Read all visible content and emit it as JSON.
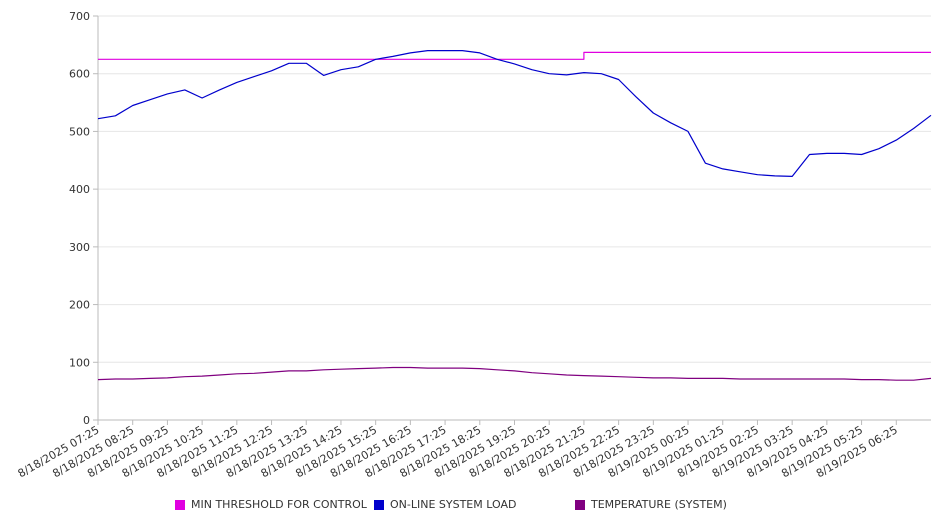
{
  "chart_data": {
    "type": "line",
    "title": "",
    "xlabel": "",
    "ylabel": "",
    "ylim": [
      0,
      700
    ],
    "yticks": [
      0,
      100,
      200,
      300,
      400,
      500,
      600,
      700
    ],
    "grid": "horizontal",
    "legend_position": "bottom",
    "x_tick_labels": [
      "8/18/2025 07:25",
      "8/18/2025 08:25",
      "8/18/2025 09:25",
      "8/18/2025 10:25",
      "8/18/2025 11:25",
      "8/18/2025 12:25",
      "8/18/2025 13:25",
      "8/18/2025 14:25",
      "8/18/2025 15:25",
      "8/18/2025 16:25",
      "8/18/2025 17:25",
      "8/18/2025 18:25",
      "8/18/2025 19:25",
      "8/18/2025 20:25",
      "8/18/2025 21:25",
      "8/18/2025 22:25",
      "8/18/2025 23:25",
      "8/19/2025 00:25",
      "8/19/2025 01:25",
      "8/19/2025 02:25",
      "8/19/2025 03:25",
      "8/19/2025 04:25",
      "8/19/2025 05:25",
      "8/19/2025 06:25"
    ],
    "x": [
      "8/18/2025 07:25",
      "8/18/2025 07:55",
      "8/18/2025 08:25",
      "8/18/2025 08:55",
      "8/18/2025 09:25",
      "8/18/2025 09:55",
      "8/18/2025 10:25",
      "8/18/2025 10:55",
      "8/18/2025 11:25",
      "8/18/2025 11:55",
      "8/18/2025 12:25",
      "8/18/2025 12:55",
      "8/18/2025 13:25",
      "8/18/2025 13:55",
      "8/18/2025 14:25",
      "8/18/2025 14:55",
      "8/18/2025 15:25",
      "8/18/2025 15:55",
      "8/18/2025 16:25",
      "8/18/2025 16:55",
      "8/18/2025 17:25",
      "8/18/2025 17:55",
      "8/18/2025 18:25",
      "8/18/2025 18:55",
      "8/18/2025 19:25",
      "8/18/2025 19:55",
      "8/18/2025 20:25",
      "8/18/2025 20:55",
      "8/18/2025 21:25",
      "8/18/2025 21:55",
      "8/18/2025 22:25",
      "8/18/2025 22:55",
      "8/18/2025 23:25",
      "8/18/2025 23:55",
      "8/19/2025 00:25",
      "8/19/2025 00:55",
      "8/19/2025 01:25",
      "8/19/2025 01:55",
      "8/19/2025 02:25",
      "8/19/2025 02:55",
      "8/19/2025 03:25",
      "8/19/2025 03:55",
      "8/19/2025 04:25",
      "8/19/2025 04:55",
      "8/19/2025 05:25",
      "8/19/2025 05:55",
      "8/19/2025 06:25",
      "8/19/2025 06:55",
      "8/19/2025 07:25"
    ],
    "series": [
      {
        "name": "MIN THRESHOLD FOR CONTROL",
        "color": "#e000e0",
        "values": [
          625,
          625,
          625,
          625,
          625,
          625,
          625,
          625,
          625,
          625,
          625,
          625,
          625,
          625,
          625,
          625,
          625,
          625,
          625,
          625,
          625,
          625,
          625,
          625,
          625,
          625,
          625,
          625,
          637,
          637,
          637,
          637,
          637,
          637,
          637,
          637,
          637,
          637,
          637,
          637,
          637,
          637,
          637,
          637,
          637,
          637,
          637,
          637,
          637
        ]
      },
      {
        "name": "ON-LINE SYSTEM LOAD",
        "color": "#0000cc",
        "values": [
          522,
          527,
          545,
          555,
          565,
          572,
          558,
          572,
          585,
          595,
          605,
          618,
          618,
          597,
          607,
          612,
          625,
          630,
          636,
          640,
          640,
          640,
          636,
          625,
          617,
          607,
          600,
          598,
          602,
          600,
          590,
          560,
          532,
          515,
          500,
          445,
          435,
          430,
          425,
          423,
          422,
          460,
          462,
          462,
          460,
          470,
          485,
          505,
          528
        ]
      },
      {
        "name": "TEMPERATURE (SYSTEM)",
        "color": "#800080",
        "values": [
          70,
          71,
          71,
          72,
          73,
          75,
          76,
          78,
          80,
          81,
          83,
          85,
          85,
          87,
          88,
          89,
          90,
          91,
          91,
          90,
          90,
          90,
          89,
          87,
          85,
          82,
          80,
          78,
          77,
          76,
          75,
          74,
          73,
          73,
          72,
          72,
          72,
          71,
          71,
          71,
          71,
          71,
          71,
          71,
          70,
          70,
          69,
          69,
          72
        ]
      }
    ]
  }
}
